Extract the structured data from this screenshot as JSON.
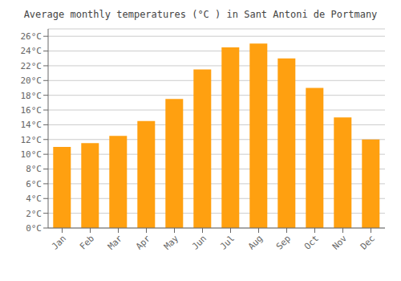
{
  "chart_data": {
    "type": "bar",
    "title": "Average monthly temperatures (°C ) in Sant Antoni de Portmany",
    "categories": [
      "Jan",
      "Feb",
      "Mar",
      "Apr",
      "May",
      "Jun",
      "Jul",
      "Aug",
      "Sep",
      "Oct",
      "Nov",
      "Dec"
    ],
    "values": [
      11.0,
      11.5,
      12.5,
      14.5,
      17.5,
      21.5,
      24.5,
      25.0,
      23.0,
      19.0,
      15.0,
      12.0
    ],
    "color": "#FFA010",
    "ylim": [
      0,
      27
    ],
    "yticks": [
      {
        "value": 0,
        "label": "0°C"
      },
      {
        "value": 2,
        "label": "2°C"
      },
      {
        "value": 4,
        "label": "4°C"
      },
      {
        "value": 6,
        "label": "6°C"
      },
      {
        "value": 8,
        "label": "8°C"
      },
      {
        "value": 10,
        "label": "10°C"
      },
      {
        "value": 12,
        "label": "12°C"
      },
      {
        "value": 14,
        "label": "14°C"
      },
      {
        "value": 16,
        "label": "16°C"
      },
      {
        "value": 18,
        "label": "18°C"
      },
      {
        "value": 20,
        "label": "20°C"
      },
      {
        "value": 22,
        "label": "22°C"
      },
      {
        "value": 24,
        "label": "24°C"
      },
      {
        "value": 26,
        "label": "26°C"
      }
    ],
    "grid": true
  }
}
